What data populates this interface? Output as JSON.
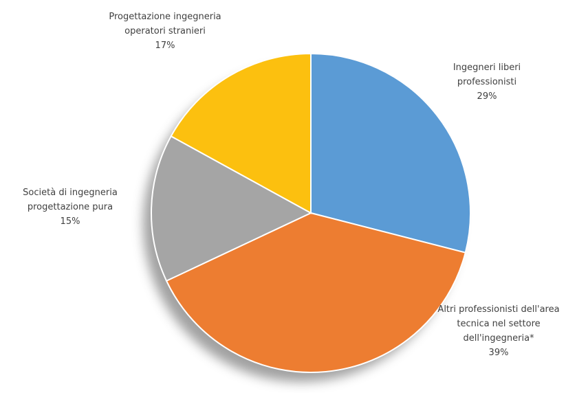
{
  "chart_data": {
    "type": "pie",
    "categories": [
      "Ingegneri liberi professionisti",
      "Altri professionisti dell'area tecnica nel settore dell'ingegneria*",
      "Società di ingegneria progettazione pura",
      "Progettazione ingegneria operatori stranieri"
    ],
    "values": [
      29,
      39,
      15,
      17
    ],
    "value_labels": [
      "29%",
      "39%",
      "15%",
      "17%"
    ],
    "colors": [
      "#5b9bd5",
      "#ed7d31",
      "#a5a5a5",
      "#fcc00f"
    ]
  }
}
